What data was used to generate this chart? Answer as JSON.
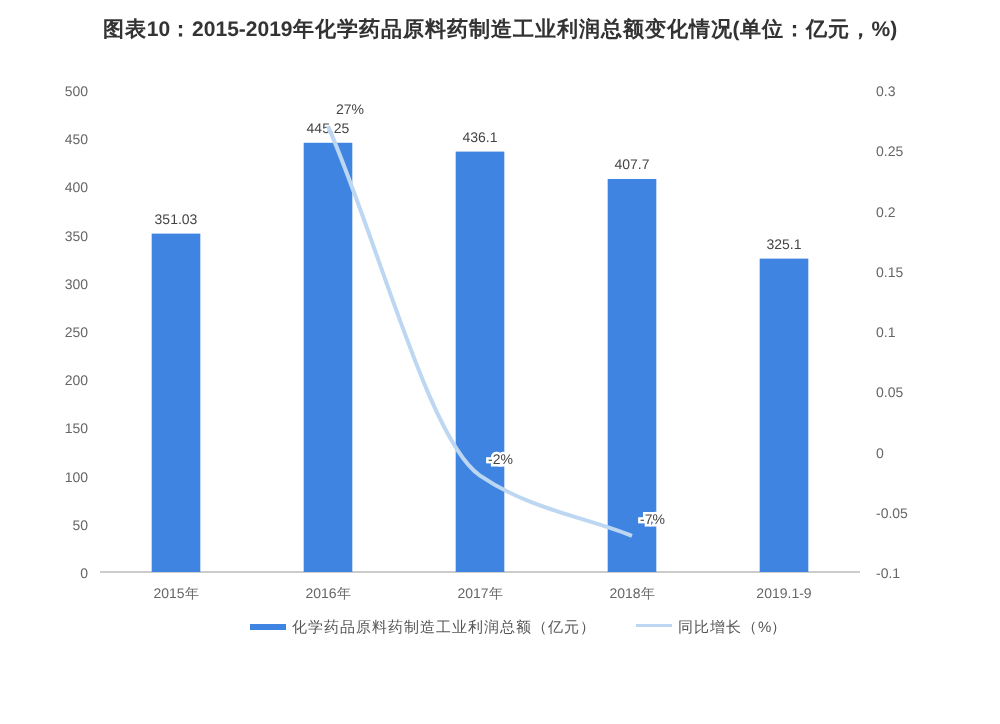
{
  "chart_data": {
    "type": "bar",
    "title": "图表10：2015-2019年化学药品原料药制造工业利润总额变化情况(单位：亿元，%)",
    "categories": [
      "2015年",
      "2016年",
      "2017年",
      "2018年",
      "2019.1-9"
    ],
    "series": [
      {
        "name": "化学药品原料药制造工业利润总额（亿元）",
        "color": "#3f84e0",
        "values": [
          351.03,
          445.25,
          436.1,
          407.7,
          325.1
        ],
        "value_labels": [
          "351.03",
          "445.25",
          "436.1",
          "407.7",
          "325.1"
        ]
      },
      {
        "name": "同比增长（%）",
        "type": "line",
        "axis": "y2",
        "color": "#bdd7f2",
        "values": [
          null,
          0.27,
          -0.02,
          -0.07,
          null
        ],
        "value_labels": [
          null,
          "27%",
          "-2%",
          "-7%",
          null
        ]
      }
    ],
    "ylim": [
      0,
      500
    ],
    "yticks": [
      0,
      50,
      100,
      150,
      200,
      250,
      300,
      350,
      400,
      450,
      500
    ],
    "y2lim": [
      -0.1,
      0.3
    ],
    "y2ticks": [
      -0.1,
      -0.05,
      0,
      0.05,
      0.1,
      0.15,
      0.2,
      0.25,
      0.3
    ],
    "legend": "bottom",
    "marker": "none"
  }
}
